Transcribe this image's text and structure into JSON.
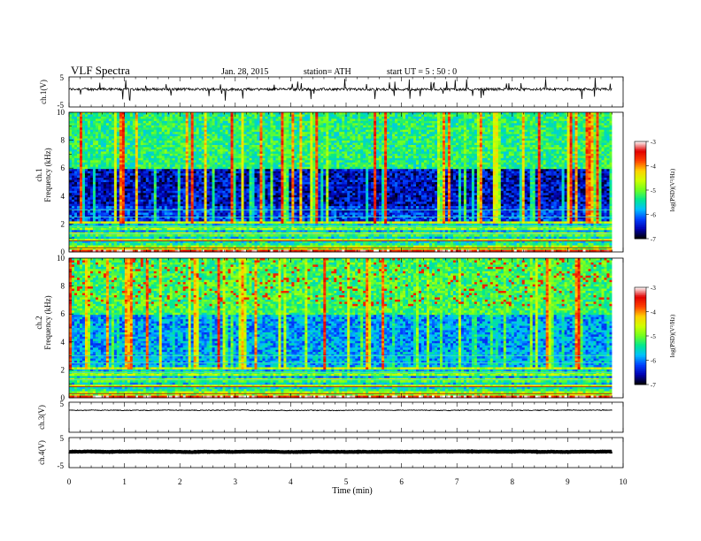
{
  "header": {
    "title": "VLF  Spectra",
    "date": "Jan.  28,  2015",
    "station": "station= ATH",
    "start_ut": "start  UT  =   5  : 50 : 0"
  },
  "chart_data": [
    {
      "type": "line",
      "ylabel": "ch.1(V)",
      "ylim": [
        -5,
        5
      ],
      "yticks": [
        "5",
        "-5"
      ],
      "xlim": [
        0,
        10
      ],
      "baseline": 0.0,
      "noise": "high, frequent spikes"
    },
    {
      "type": "heatmap",
      "ylabel": "ch.1\nFrequency  (kHz)",
      "ylim": [
        0,
        10
      ],
      "yticks": [
        "0",
        "2",
        "4",
        "6",
        "8",
        "10"
      ],
      "xlim": [
        0,
        9.8
      ],
      "colorbar": {
        "label": "log(PSD)(V²/Hz)",
        "range": [
          -7,
          -3
        ],
        "ticks": [
          "-3",
          "-4",
          "-5",
          "-6",
          "-7"
        ]
      }
    },
    {
      "type": "heatmap",
      "ylabel": "ch.2\nFrequency  (kHz)",
      "ylim": [
        0,
        10
      ],
      "yticks": [
        "0",
        "2",
        "4",
        "6",
        "8",
        "10"
      ],
      "xlim": [
        0,
        9.8
      ],
      "colorbar": {
        "label": "log(PSD)(V²/Hz)",
        "range": [
          -7,
          -3
        ],
        "ticks": [
          "-3",
          "-4",
          "-5",
          "-6",
          "-7"
        ]
      }
    },
    {
      "type": "line",
      "ylabel": "ch.3(V)",
      "ylim": [
        -5,
        5
      ],
      "yticks": [
        "5"
      ],
      "xlim": [
        0,
        10
      ],
      "baseline": 0.0,
      "noise": "low"
    },
    {
      "type": "line",
      "ylabel": "ch.4(V)",
      "ylim": [
        -5,
        5
      ],
      "yticks": [
        "5",
        "-5"
      ],
      "xlim": [
        0,
        10
      ],
      "baseline": 0.0,
      "noise": "thick band"
    }
  ],
  "xaxis": {
    "label": "Time  (min)",
    "ticks": [
      "0",
      "1",
      "2",
      "3",
      "4",
      "5",
      "6",
      "7",
      "8",
      "9",
      "10"
    ],
    "range": [
      0,
      10
    ]
  },
  "colors": {
    "colormap": [
      "#000000",
      "#0000b0",
      "#0040ff",
      "#00c0ff",
      "#00e890",
      "#70ff20",
      "#d0ff00",
      "#ffd000",
      "#ff4000",
      "#e00000",
      "#ffffff"
    ]
  }
}
